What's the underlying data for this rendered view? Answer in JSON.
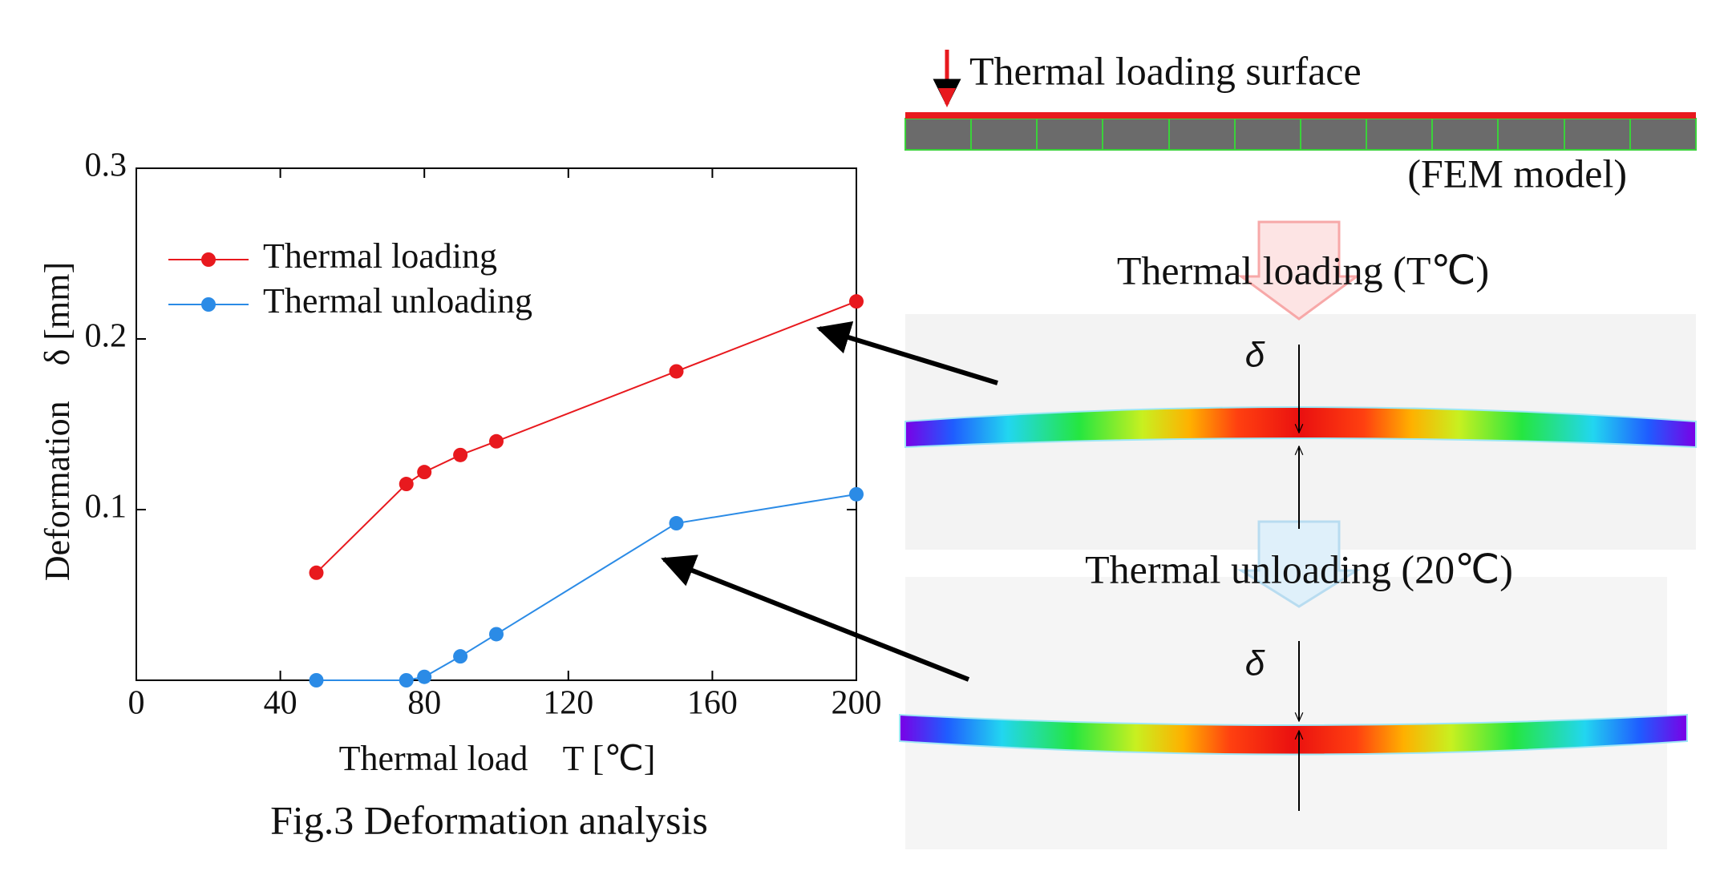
{
  "chart_data": {
    "type": "line",
    "x_label": "Thermal load    T [℃]",
    "y_label": "Deformation    δ [mm]",
    "caption": "Fig.3 Deformation analysis",
    "x": [
      50,
      75,
      80,
      90,
      100,
      150,
      200
    ],
    "series": [
      {
        "name": "Thermal loading",
        "color": "#e8191e",
        "values": [
          0.063,
          0.115,
          0.122,
          0.132,
          0.14,
          0.181,
          0.222
        ]
      },
      {
        "name": "Thermal unloading",
        "color": "#2b8be6",
        "values": [
          0,
          0,
          0.002,
          0.014,
          0.027,
          0.092,
          0.109
        ]
      }
    ],
    "xlim": [
      0,
      200
    ],
    "xticks": [
      0,
      40,
      80,
      120,
      160,
      200
    ],
    "ylim": [
      0,
      0.3
    ],
    "yticks": [
      0.1,
      0.2,
      0.3
    ],
    "legend": "upper left"
  },
  "diagram": {
    "surface_label": "Thermal loading surface",
    "model_label": "(FEM model)",
    "loading_label": "Thermal loading (T℃)",
    "unloading_label": "Thermal unloading (20℃)",
    "delta_top": "δ",
    "delta_bottom": "δ"
  }
}
